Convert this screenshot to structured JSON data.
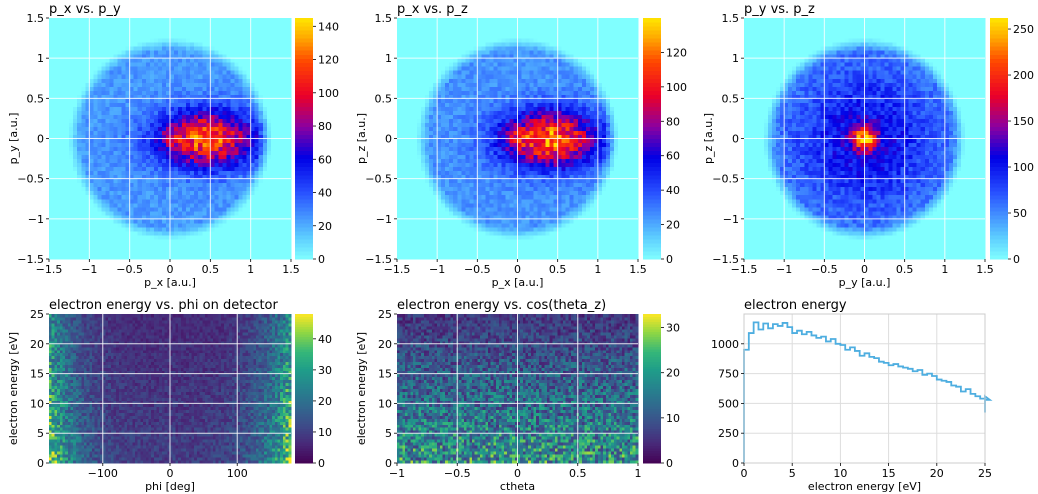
{
  "chart_data": [
    {
      "type": "heatmap",
      "title": "p_x vs. p_y",
      "xlabel": "p_x [a.u.]",
      "ylabel": "p_y [a.u.]",
      "xlim": [
        -1.5,
        1.5
      ],
      "ylim": [
        -1.5,
        1.5
      ],
      "xticks": [
        -1.5,
        -1.0,
        -0.5,
        0.0,
        0.5,
        1.0,
        1.5
      ],
      "yticks": [
        -1.5,
        -1.0,
        -0.5,
        0.0,
        0.5,
        1.0,
        1.5
      ],
      "colorbar": {
        "colormap": "jet",
        "range": [
          0,
          145
        ],
        "ticks": [
          0,
          20,
          40,
          60,
          80,
          100,
          120,
          140
        ]
      },
      "grid": true,
      "distribution": {
        "shape": "disc",
        "radius": 1.2,
        "peak": [
          0.45,
          0.0
        ],
        "peak_max": 145
      }
    },
    {
      "type": "heatmap",
      "title": "p_x vs. p_z",
      "xlabel": "p_x [a.u.]",
      "ylabel": "p_z [a.u.]",
      "xlim": [
        -1.5,
        1.5
      ],
      "ylim": [
        -1.5,
        1.5
      ],
      "xticks": [
        -1.5,
        -1.0,
        -0.5,
        0.0,
        0.5,
        1.0,
        1.5
      ],
      "yticks": [
        -1.5,
        -1.0,
        -0.5,
        0.0,
        0.5,
        1.0,
        1.5
      ],
      "colorbar": {
        "colormap": "jet",
        "range": [
          0,
          140
        ],
        "ticks": [
          0,
          20,
          40,
          60,
          80,
          100,
          120
        ]
      },
      "grid": true,
      "distribution": {
        "shape": "disc",
        "radius": 1.2,
        "peak": [
          0.4,
          0.0
        ],
        "peak_max": 135
      }
    },
    {
      "type": "heatmap",
      "title": "p_y vs. p_z",
      "xlabel": "p_y [a.u.]",
      "ylabel": "p_z [a.u.]",
      "xlim": [
        -1.5,
        1.5
      ],
      "ylim": [
        -1.5,
        1.5
      ],
      "xticks": [
        -1.5,
        -1.0,
        -0.5,
        0.0,
        0.5,
        1.0,
        1.5
      ],
      "yticks": [
        -1.5,
        -1.0,
        -0.5,
        0.0,
        0.5,
        1.0,
        1.5
      ],
      "colorbar": {
        "colormap": "jet",
        "range": [
          0,
          262
        ],
        "ticks": [
          0,
          50,
          100,
          150,
          200,
          250
        ]
      },
      "grid": true,
      "distribution": {
        "shape": "disc",
        "radius": 1.2,
        "peak": [
          0.0,
          0.0
        ],
        "peak_max": 262
      }
    },
    {
      "type": "heatmap",
      "title": "electron energy vs. phi on detector",
      "xlabel": "phi [deg]",
      "ylabel": "electron energy [eV]",
      "xlim": [
        -180,
        180
      ],
      "ylim": [
        0,
        25
      ],
      "xticks": [
        -100,
        0,
        100
      ],
      "yticks": [
        0,
        5,
        10,
        15,
        20,
        25
      ],
      "colorbar": {
        "colormap": "viridis",
        "range": [
          0,
          48
        ],
        "ticks": [
          0,
          10,
          20,
          30,
          40
        ]
      },
      "grid": true,
      "distribution": {
        "shape": "edge-enhanced in phi",
        "peak_max": 45
      }
    },
    {
      "type": "heatmap",
      "title": "electron energy vs. cos(theta_z)",
      "xlabel": "ctheta",
      "ylabel": "electron energy [eV]",
      "xlim": [
        -1.0,
        1.0
      ],
      "ylim": [
        0,
        25
      ],
      "xticks": [
        -1.0,
        -0.5,
        0.0,
        0.5,
        1.0
      ],
      "yticks": [
        0,
        5,
        10,
        15,
        20,
        25
      ],
      "colorbar": {
        "colormap": "viridis",
        "range": [
          0,
          33
        ],
        "ticks": [
          0,
          10,
          20,
          30
        ]
      },
      "grid": true,
      "distribution": {
        "shape": "decreasing with energy",
        "peak_max": 32
      }
    },
    {
      "type": "line",
      "style": "step histogram",
      "title": "electron energy",
      "xlabel": "electron energy [eV]",
      "ylabel": "",
      "xlim": [
        0,
        25
      ],
      "ylim": [
        0,
        1250
      ],
      "xticks": [
        0,
        5,
        10,
        15,
        20,
        25
      ],
      "yticks": [
        0,
        250,
        500,
        750,
        1000
      ],
      "grid": true,
      "color": "#4eaee0",
      "bin_width": 0.5,
      "values": [
        950,
        1090,
        1180,
        1120,
        1170,
        1130,
        1165,
        1150,
        1175,
        1140,
        1090,
        1110,
        1080,
        1100,
        1070,
        1050,
        1060,
        1020,
        1040,
        1000,
        990,
        950,
        970,
        940,
        900,
        920,
        890,
        880,
        850,
        840,
        820,
        830,
        810,
        800,
        790,
        770,
        780,
        740,
        750,
        730,
        700,
        690,
        680,
        650,
        640,
        600,
        620,
        580,
        560,
        540,
        560,
        530
      ]
    }
  ]
}
